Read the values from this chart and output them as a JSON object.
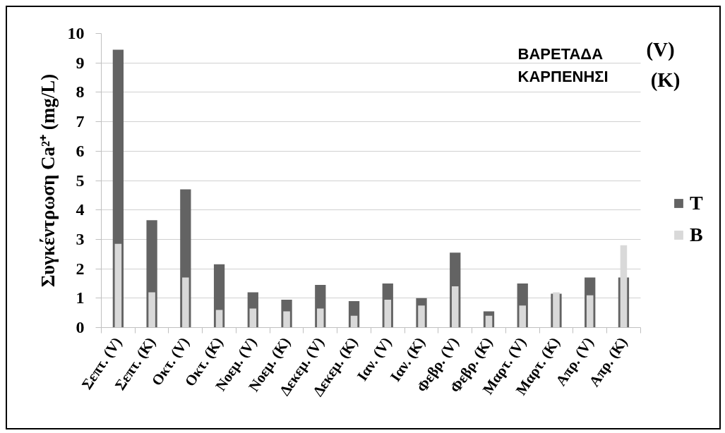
{
  "chart_data": {
    "type": "bar",
    "categories": [
      "Σεπτ. (V)",
      "Σεπτ. (K)",
      "Οκτ. (V)",
      "Οκτ. (K)",
      "Νοεμ. (V)",
      "Νοεμ. (K)",
      "Δεκεμ. (V)",
      "Δεκεμ. (K)",
      "Ιαν. (V)",
      "Ιαν. (K)",
      "Φεβρ. (V)",
      "Φεβρ. (K)",
      "Μαρτ. (V)",
      "Μαρτ. (K)",
      "Απρ. (V)",
      "Απρ. (K)"
    ],
    "series": [
      {
        "name": "T",
        "color": "#636363",
        "values": [
          9.45,
          3.65,
          4.7,
          2.15,
          1.2,
          0.95,
          1.45,
          0.9,
          1.5,
          1.0,
          2.55,
          0.55,
          1.5,
          1.15,
          1.7,
          1.7
        ]
      },
      {
        "name": "B",
        "color": "#d9d9d9",
        "values": [
          2.85,
          1.2,
          1.7,
          0.6,
          0.65,
          0.55,
          0.65,
          0.4,
          0.95,
          0.75,
          1.4,
          0.4,
          0.75,
          1.2,
          1.1,
          2.8
        ]
      }
    ],
    "ylabel": "Συγκέντρωση Ca²⁺ (mg/L)",
    "ylim": [
      0,
      10
    ],
    "yticks": [
      0,
      1,
      2,
      3,
      4,
      5,
      6,
      7,
      8,
      9,
      10
    ],
    "grid": "y",
    "legend": "right",
    "annotations": [
      "ΒΑΡΕΤΑΔΑ",
      "(V)",
      "ΚΑΡΠΕΝΗΣΙ",
      "(K)"
    ]
  }
}
